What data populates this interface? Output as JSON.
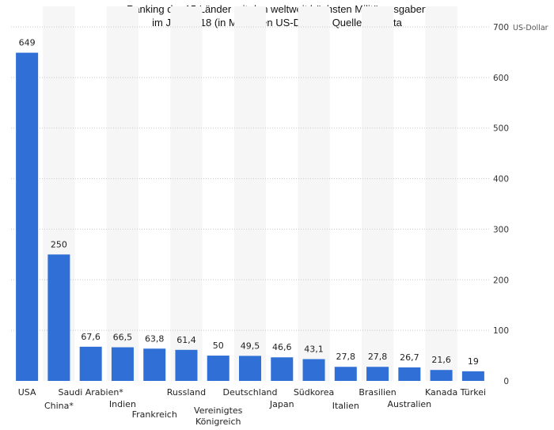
{
  "chart_data": {
    "type": "bar",
    "title_lines": [
      "Ranking der 15 Länder mit den weltweit höchsten Militärausgaben",
      "im Jahr 2018 (in Milliarden US-Dollar) / Quelle: Statista"
    ],
    "y_unit": "US-Dollar",
    "ylim": [
      0,
      700
    ],
    "yticks": [
      0,
      100,
      200,
      300,
      400,
      500,
      600,
      700
    ],
    "grid": true,
    "bar_color": "#2f6fd6",
    "band_color": "#f6f6f6",
    "gridline_color": "#c8c8c8",
    "categories": [
      [
        "USA"
      ],
      [
        "China*"
      ],
      [
        "Saudi Arabien*"
      ],
      [
        "Indien"
      ],
      [
        "Frankreich"
      ],
      [
        "Russland"
      ],
      [
        "Vereinigtes",
        "Königreich"
      ],
      [
        "Deutschland"
      ],
      [
        "Japan"
      ],
      [
        "Südkorea"
      ],
      [
        "Italien"
      ],
      [
        "Brasilien"
      ],
      [
        "Australien"
      ],
      [
        "Kanada"
      ],
      [
        "Türkei"
      ]
    ],
    "values": [
      649,
      250,
      67.6,
      66.5,
      63.8,
      61.4,
      50,
      49.5,
      46.6,
      43.1,
      27.8,
      27.8,
      26.7,
      21.6,
      19
    ],
    "value_labels": [
      "649",
      "250",
      "67,6",
      "66,5",
      "63,8",
      "61,4",
      "50",
      "49,5",
      "46,6",
      "43,1",
      "27,8",
      "27,8",
      "26,7",
      "21,6",
      "19"
    ]
  }
}
